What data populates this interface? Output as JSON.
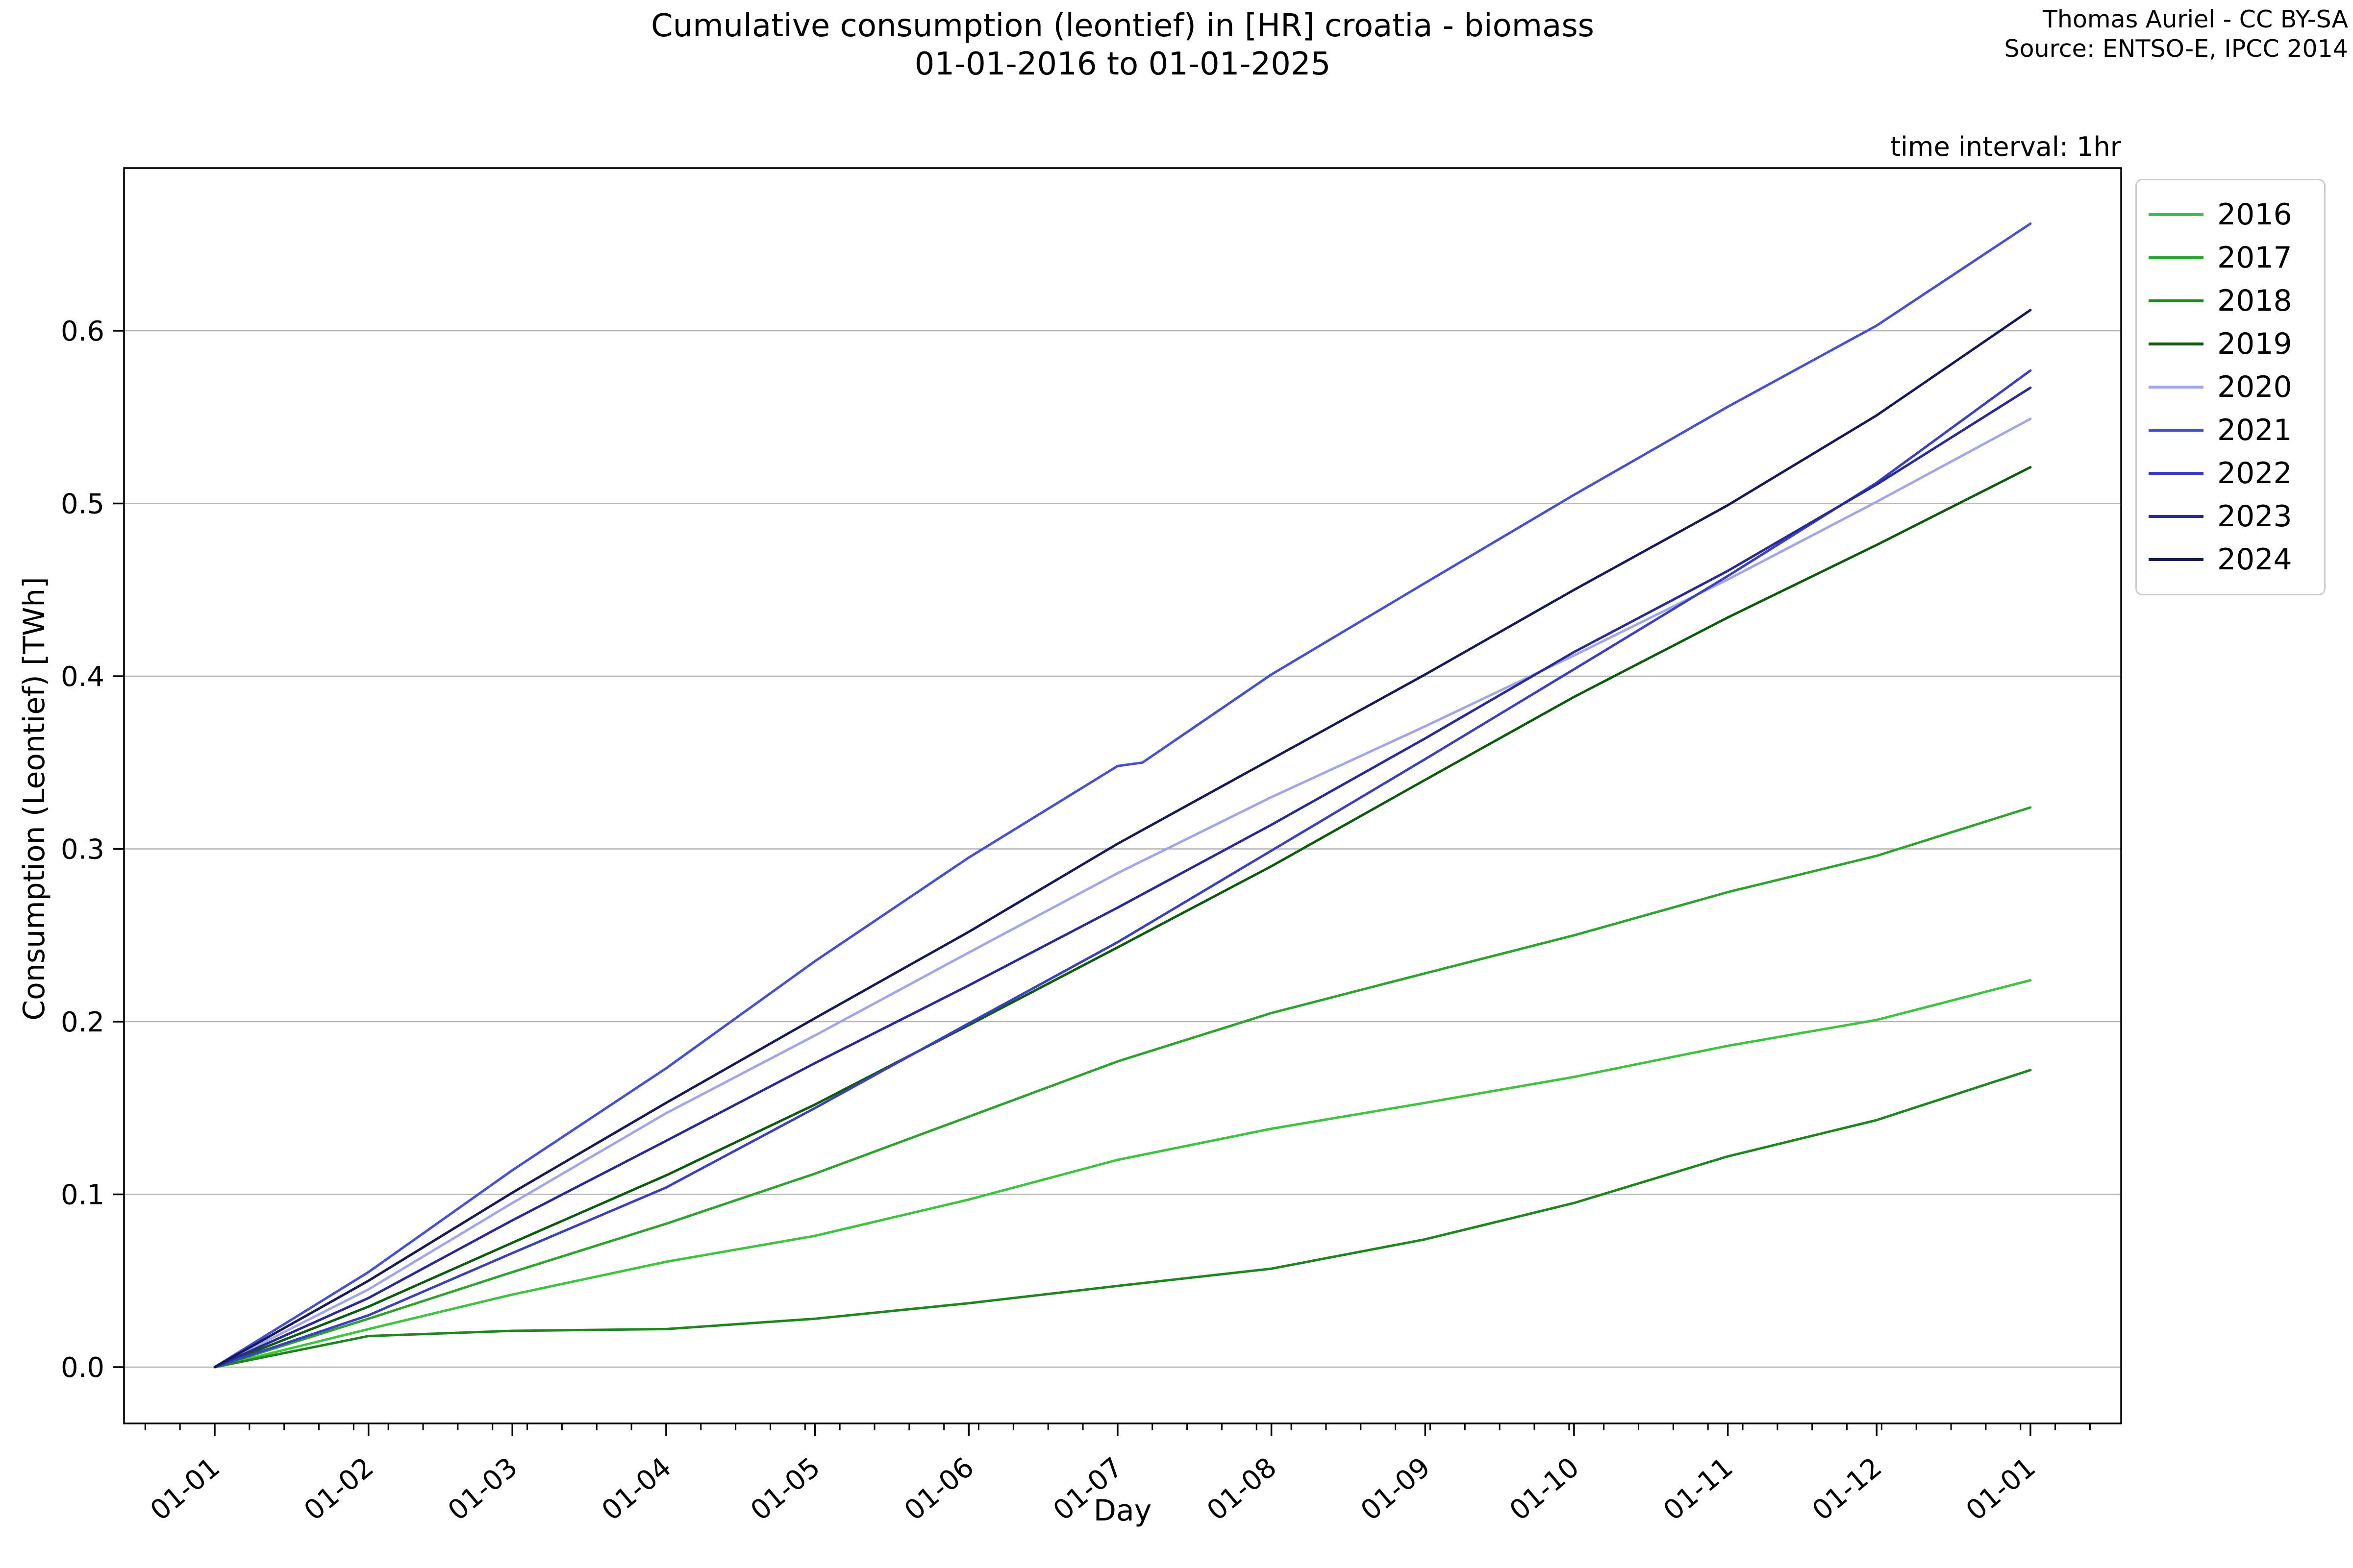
{
  "header": {
    "title_line1": "Cumulative consumption (leontief) in [HR] croatia - biomass",
    "title_line2": "01-01-2016 to 01-01-2025",
    "credit_line1": "Thomas Auriel - CC BY-SA",
    "credit_line2": "Source: ENTSO-E, IPCC 2014",
    "time_interval_note": "time interval: 1hr"
  },
  "chart_data": {
    "type": "line",
    "title": "Cumulative consumption (leontief) in [HR] croatia - biomass 01-01-2016 to 01-01-2025",
    "xlabel": "Day",
    "ylabel": "Consumption (Leontief) [TWh]",
    "legend_position": "upper right, outside axes",
    "grid": "horizontal only",
    "grid_color": "#b5b5b5",
    "spine_color": "#000000",
    "x_axis_unit": "day of year (all years overlaid)",
    "x_tick_labels": [
      "01-01",
      "01-02",
      "01-03",
      "01-04",
      "01-05",
      "01-06",
      "01-07",
      "01-08",
      "01-09",
      "01-10",
      "01-11",
      "01-12",
      "01-01"
    ],
    "x_tick_days": [
      0,
      31,
      60,
      91,
      121,
      152,
      182,
      213,
      244,
      274,
      305,
      335,
      366
    ],
    "x_minor_tick_interval_days": 7,
    "x_tick_rotation_deg": 40,
    "y_ticks": [
      {
        "label": "0.0",
        "value": 0.0
      },
      {
        "label": "0.1",
        "value": 0.1
      },
      {
        "label": "0.2",
        "value": 0.2
      },
      {
        "label": "0.3",
        "value": 0.3
      },
      {
        "label": "0.4",
        "value": 0.4
      },
      {
        "label": "0.5",
        "value": 0.5
      },
      {
        "label": "0.6",
        "value": 0.6
      }
    ],
    "ylim_approx": [
      -0.033,
      0.694
    ],
    "x_days_monthly": [
      0,
      31,
      60,
      91,
      121,
      152,
      182,
      213,
      244,
      274,
      305,
      335,
      366
    ],
    "series": [
      {
        "name": "2016",
        "color": "#3fc43f",
        "x_days": [
          0,
          31,
          60,
          91,
          121,
          152,
          182,
          213,
          244,
          274,
          305,
          335,
          366
        ],
        "values": [
          0,
          0.022,
          0.042,
          0.061,
          0.076,
          0.097,
          0.12,
          0.138,
          0.153,
          0.168,
          0.186,
          0.201,
          0.224
        ]
      },
      {
        "name": "2017",
        "color": "#2ea32e",
        "x_days": [
          0,
          31,
          60,
          91,
          121,
          152,
          182,
          213,
          244,
          274,
          305,
          335,
          366
        ],
        "values": [
          0,
          0.028,
          0.055,
          0.083,
          0.112,
          0.145,
          0.177,
          0.205,
          0.228,
          0.25,
          0.275,
          0.296,
          0.324
        ]
      },
      {
        "name": "2018",
        "color": "#1d861d",
        "x_days": [
          0,
          31,
          60,
          91,
          121,
          152,
          182,
          213,
          244,
          274,
          305,
          335,
          366
        ],
        "values": [
          0,
          0.018,
          0.021,
          0.022,
          0.028,
          0.037,
          0.047,
          0.057,
          0.074,
          0.095,
          0.122,
          0.143,
          0.172
        ]
      },
      {
        "name": "2019",
        "color": "#0d5c0d",
        "x_days": [
          0,
          31,
          60,
          91,
          121,
          152,
          182,
          213,
          244,
          274,
          305,
          335,
          366
        ],
        "values": [
          0,
          0.035,
          0.072,
          0.111,
          0.152,
          0.198,
          0.243,
          0.29,
          0.34,
          0.388,
          0.434,
          0.476,
          0.521
        ]
      },
      {
        "name": "2020",
        "color": "#a0a6e8",
        "x_days": [
          0,
          31,
          60,
          91,
          121,
          152,
          182,
          213,
          244,
          274,
          305,
          335,
          366
        ],
        "values": [
          0,
          0.045,
          0.095,
          0.147,
          0.192,
          0.24,
          0.286,
          0.33,
          0.371,
          0.412,
          0.456,
          0.501,
          0.549
        ]
      },
      {
        "name": "2021",
        "color": "#4650d4",
        "x_days": [
          0,
          31,
          60,
          91,
          121,
          152,
          182,
          187,
          213,
          244,
          274,
          305,
          335,
          366
        ],
        "values": [
          0,
          0.055,
          0.114,
          0.173,
          0.235,
          0.295,
          0.348,
          0.35,
          0.401,
          0.454,
          0.505,
          0.556,
          0.603,
          0.662
        ]
      },
      {
        "name": "2022",
        "color": "#3a40c0",
        "x_days": [
          0,
          31,
          60,
          91,
          121,
          152,
          182,
          213,
          244,
          274,
          305,
          335,
          366
        ],
        "values": [
          0,
          0.03,
          0.066,
          0.104,
          0.15,
          0.199,
          0.246,
          0.299,
          0.352,
          0.404,
          0.458,
          0.512,
          0.577
        ]
      },
      {
        "name": "2023",
        "color": "#282a9c",
        "x_days": [
          0,
          31,
          60,
          91,
          121,
          152,
          182,
          213,
          244,
          274,
          305,
          335,
          366
        ],
        "values": [
          0,
          0.04,
          0.085,
          0.131,
          0.176,
          0.221,
          0.266,
          0.314,
          0.364,
          0.414,
          0.461,
          0.511,
          0.567
        ]
      },
      {
        "name": "2024",
        "color": "#161a58",
        "x_days": [
          0,
          31,
          60,
          91,
          121,
          152,
          182,
          213,
          244,
          274,
          305,
          335,
          366
        ],
        "values": [
          0,
          0.05,
          0.101,
          0.153,
          0.202,
          0.252,
          0.303,
          0.352,
          0.401,
          0.45,
          0.499,
          0.551,
          0.612
        ]
      }
    ]
  }
}
